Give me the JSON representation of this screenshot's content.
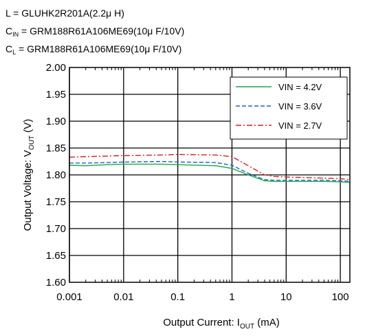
{
  "header": {
    "line1": "L = GLUHK2R201A(2.2μ H)",
    "line2": {
      "pre": "C",
      "sub": "IN",
      "post": " = GRM188R61A106ME69(10μ F/10V)"
    },
    "line3": {
      "pre": "C",
      "sub": "L",
      "post": " = GRM188R61A106ME69(10μ F/10V)"
    }
  },
  "chart_data": {
    "type": "line",
    "x_scale": "log",
    "xlim": [
      0.001,
      150
    ],
    "ylim": [
      1.6,
      2.0
    ],
    "x_ticks": [
      0.001,
      0.01,
      0.1,
      1,
      10,
      100
    ],
    "x_tick_labels": [
      "0.001",
      "0.01",
      "0.1",
      "1",
      "10",
      "100"
    ],
    "y_ticks": [
      1.6,
      1.65,
      1.7,
      1.75,
      1.8,
      1.85,
      1.9,
      1.95,
      2.0
    ],
    "y_tick_labels": [
      "1.60",
      "1.65",
      "1.70",
      "1.75",
      "1.80",
      "1.85",
      "1.90",
      "1.95",
      "2.00"
    ],
    "grid": true,
    "legend_position": "top-right",
    "xlabel": {
      "pre": "Output Current: I",
      "sub": "OUT",
      "post": " (mA)"
    },
    "ylabel": {
      "pre": "Output Voltage: V",
      "sub": "OUT",
      "post": " (V)"
    },
    "series": [
      {
        "name": "VIN = 4.2V",
        "color": "#1aa64a",
        "dash": "solid",
        "x": [
          0.001,
          0.002,
          0.005,
          0.01,
          0.05,
          0.1,
          0.5,
          1,
          2,
          4,
          6,
          10,
          50,
          100,
          150
        ],
        "y": [
          1.818,
          1.817,
          1.819,
          1.82,
          1.82,
          1.819,
          1.817,
          1.812,
          1.8,
          1.789,
          1.788,
          1.788,
          1.788,
          1.787,
          1.786
        ]
      },
      {
        "name": "VIN = 3.6V",
        "color": "#2060c0",
        "dash": "dashed",
        "x": [
          0.001,
          0.002,
          0.005,
          0.01,
          0.05,
          0.1,
          0.5,
          1,
          2,
          4,
          6,
          10,
          50,
          100,
          150
        ],
        "y": [
          1.822,
          1.822,
          1.823,
          1.824,
          1.825,
          1.824,
          1.823,
          1.818,
          1.803,
          1.791,
          1.79,
          1.79,
          1.79,
          1.789,
          1.788
        ]
      },
      {
        "name": "VIN = 2.7V",
        "color": "#d42020",
        "dash": "dashdot",
        "x": [
          0.001,
          0.002,
          0.005,
          0.01,
          0.05,
          0.1,
          0.5,
          1,
          2,
          4,
          6,
          10,
          50,
          100,
          150
        ],
        "y": [
          1.833,
          1.834,
          1.835,
          1.836,
          1.837,
          1.838,
          1.837,
          1.834,
          1.817,
          1.8,
          1.797,
          1.796,
          1.794,
          1.793,
          1.791
        ]
      }
    ]
  }
}
